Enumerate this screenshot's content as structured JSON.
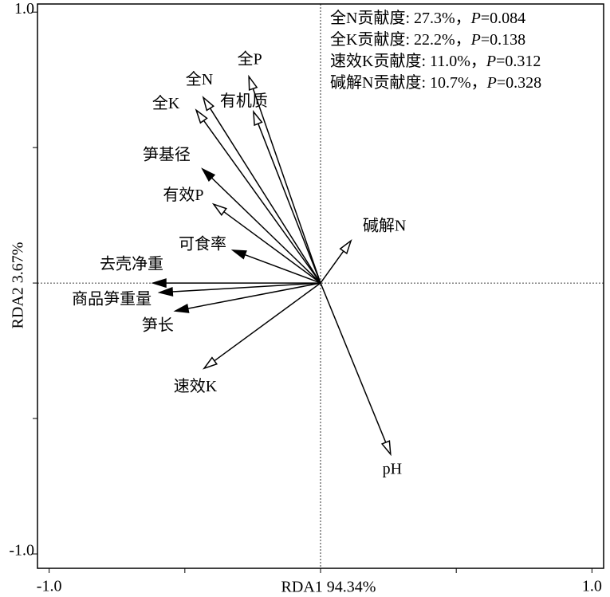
{
  "chart_data": {
    "type": "biplot",
    "x_label": "RDA1 94.34%",
    "y_label": "RDA2 3.67%",
    "xlim": [
      -1.043,
      1.043
    ],
    "ylim": [
      -1.053,
      1.03
    ],
    "xticks": [
      {
        "value": -1,
        "label": "-1.0"
      },
      {
        "value": -0.5,
        "label": null
      },
      {
        "value": 0,
        "label": null
      },
      {
        "value": 0.5,
        "label": null
      },
      {
        "value": 1,
        "label": "1.0"
      }
    ],
    "yticks": [
      {
        "value": -1,
        "label": "-1.0"
      },
      {
        "value": -0.5,
        "label": null
      },
      {
        "value": 0,
        "label": null
      },
      {
        "value": 0.5,
        "label": null
      },
      {
        "value": 1,
        "label": "1.0"
      }
    ],
    "color": "#000000",
    "arrows": [
      {
        "name": "全N",
        "x": -0.432,
        "y": 0.685,
        "filled": false
      },
      {
        "name": "全K",
        "x": -0.458,
        "y": 0.638,
        "filled": false
      },
      {
        "name": "全P",
        "x": -0.264,
        "y": 0.762,
        "filled": false
      },
      {
        "name": "有机质",
        "x": -0.247,
        "y": 0.632,
        "filled": false
      },
      {
        "name": "笋基径",
        "x": -0.435,
        "y": 0.421,
        "filled": true
      },
      {
        "name": "有效P",
        "x": -0.394,
        "y": 0.291,
        "filled": false
      },
      {
        "name": "可食率",
        "x": -0.323,
        "y": 0.121,
        "filled": true
      },
      {
        "name": "去壳净重",
        "x": -0.617,
        "y": 0.0,
        "filled": true
      },
      {
        "name": "商品笋重量",
        "x": -0.593,
        "y": -0.035,
        "filled": true
      },
      {
        "name": "笋长",
        "x": -0.535,
        "y": -0.103,
        "filled": true
      },
      {
        "name": "速效K",
        "x": -0.429,
        "y": -0.315,
        "filled": false
      },
      {
        "name": "碱解N",
        "x": 0.112,
        "y": 0.156,
        "filled": false
      },
      {
        "name": "pH",
        "x": 0.258,
        "y": -0.632,
        "filled": false
      }
    ],
    "annotations": [
      [
        "全N贡献度: 27.3%，",
        "P",
        "=0.084"
      ],
      [
        "全K贡献度: 22.2%，",
        "P",
        "=0.138"
      ],
      [
        "速效K贡献度: 11.0%，",
        "P",
        "=0.312"
      ],
      [
        "碱解N贡献度: 10.7%，",
        "P",
        "=0.328"
      ]
    ]
  }
}
